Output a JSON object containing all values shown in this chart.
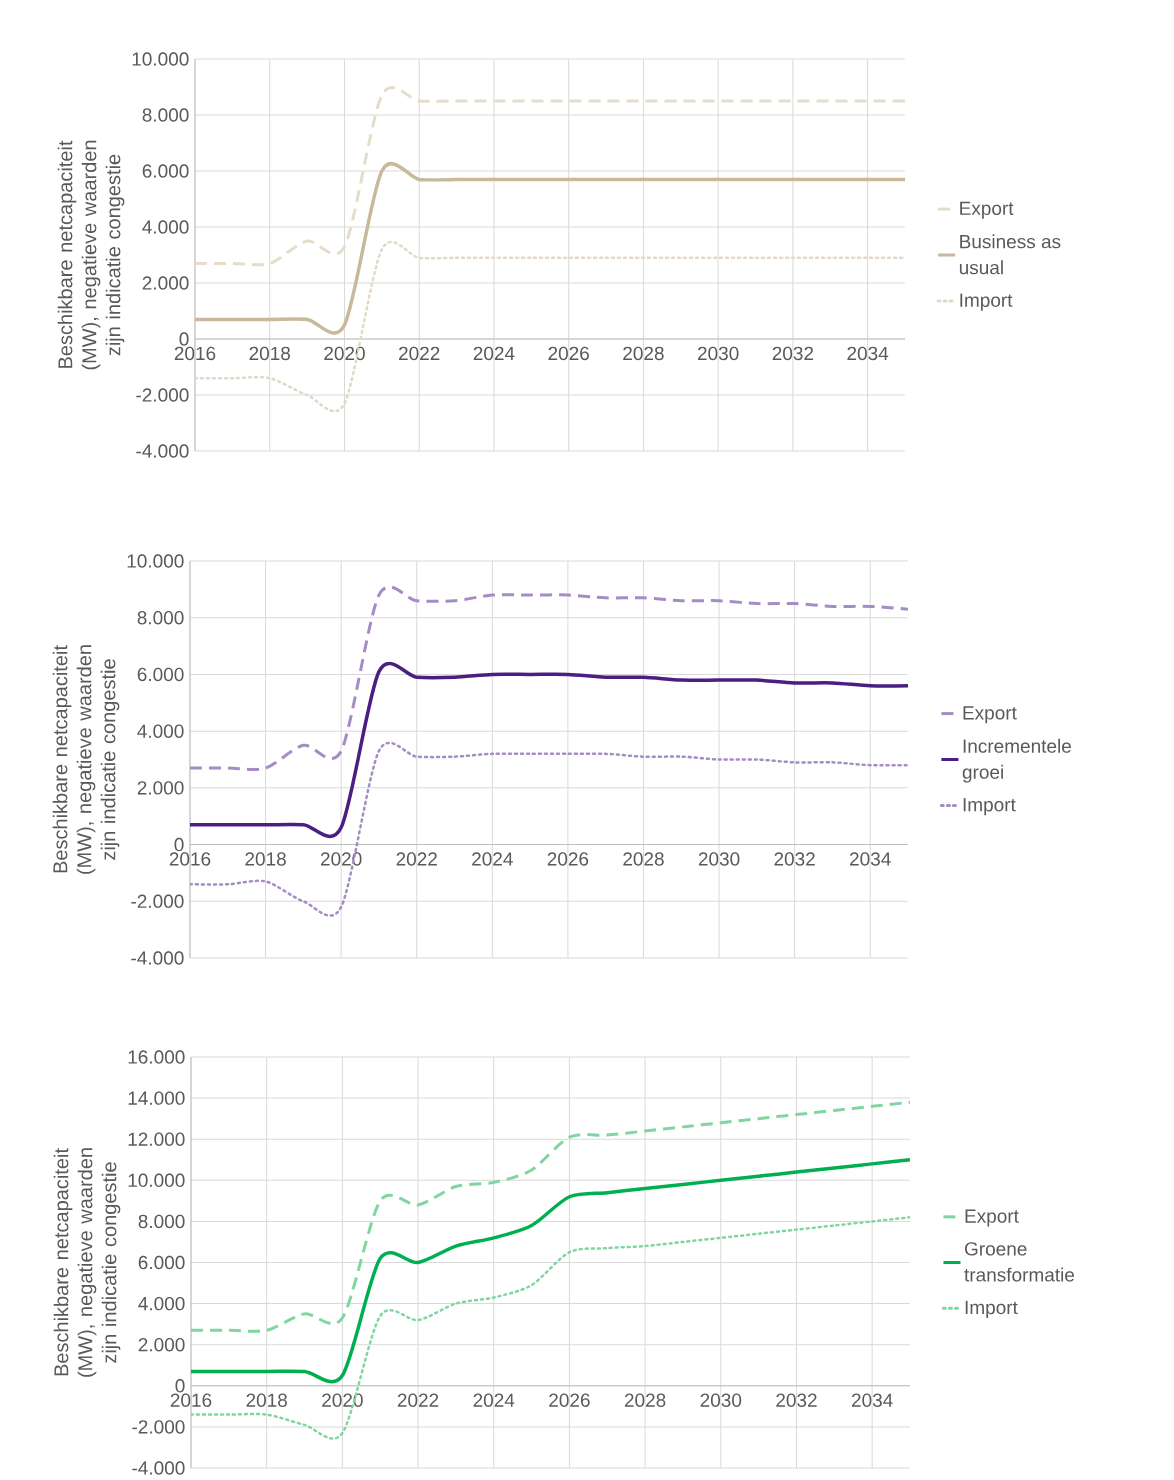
{
  "chart_data": [
    {
      "type": "line",
      "ylabel": "Beschikbare netcapaciteit (MW), negatieve waarden zijn indicatie congestie",
      "x": [
        2016,
        2017,
        2018,
        2019,
        2020,
        2021,
        2022,
        2023,
        2024,
        2025,
        2026,
        2027,
        2028,
        2029,
        2030,
        2031,
        2032,
        2033,
        2034,
        2035
      ],
      "series": [
        {
          "name": "Export",
          "color": "#e6dccb",
          "line_style": "dashed",
          "values": [
            2700,
            2700,
            2700,
            3500,
            3300,
            8700,
            8500,
            8500,
            8500,
            8500,
            8500,
            8500,
            8500,
            8500,
            8500,
            8500,
            8500,
            8500,
            8500,
            8500
          ]
        },
        {
          "name": "Business as usual",
          "color": "#c9b99a",
          "line_style": "solid",
          "values": [
            700,
            700,
            700,
            700,
            500,
            6000,
            5700,
            5700,
            5700,
            5700,
            5700,
            5700,
            5700,
            5700,
            5700,
            5700,
            5700,
            5700,
            5700,
            5700
          ]
        },
        {
          "name": "Import",
          "color": "#e3d8c8",
          "line_style": "dotted",
          "values": [
            -1400,
            -1400,
            -1400,
            -2000,
            -2300,
            3200,
            2900,
            2900,
            2900,
            2900,
            2900,
            2900,
            2900,
            2900,
            2900,
            2900,
            2900,
            2900,
            2900,
            2900
          ]
        }
      ],
      "xlim": [
        2016,
        2035
      ],
      "xticks": [
        2016,
        2018,
        2020,
        2022,
        2024,
        2026,
        2028,
        2030,
        2032,
        2034
      ],
      "ylim": [
        -4000,
        10000
      ],
      "yticks": [
        {
          "value": -4000,
          "label": "-4.000"
        },
        {
          "value": -2000,
          "label": "-2.000"
        },
        0,
        {
          "value": 2000,
          "label": "2.000"
        },
        {
          "value": 4000,
          "label": "4.000"
        },
        {
          "value": 6000,
          "label": "6.000"
        },
        {
          "value": 8000,
          "label": "8.000"
        },
        {
          "value": 10000,
          "label": "10.000"
        }
      ],
      "grid": true,
      "legend": "right",
      "marker": "none"
    },
    {
      "type": "line",
      "ylabel": "Beschikbare netcapaciteit (MW), negatieve waarden zijn indicatie congestie",
      "x": [
        2016,
        2017,
        2018,
        2019,
        2020,
        2021,
        2022,
        2023,
        2024,
        2025,
        2026,
        2027,
        2028,
        2029,
        2030,
        2031,
        2032,
        2033,
        2034,
        2035
      ],
      "series": [
        {
          "name": "Export",
          "color": "#a58cc4",
          "line_style": "dashed",
          "values": [
            2700,
            2700,
            2700,
            3500,
            3300,
            8800,
            8600,
            8600,
            8800,
            8800,
            8800,
            8700,
            8700,
            8600,
            8600,
            8500,
            8500,
            8400,
            8400,
            8300
          ]
        },
        {
          "name": "Incrementele groei",
          "color": "#4b1f82",
          "line_style": "solid",
          "values": [
            700,
            700,
            700,
            700,
            600,
            6100,
            5900,
            5900,
            6000,
            6000,
            6000,
            5900,
            5900,
            5800,
            5800,
            5800,
            5700,
            5700,
            5600,
            5600
          ]
        },
        {
          "name": "Import",
          "color": "#a58cc4",
          "line_style": "dotted",
          "values": [
            -1400,
            -1400,
            -1300,
            -2000,
            -2200,
            3300,
            3100,
            3100,
            3200,
            3200,
            3200,
            3200,
            3100,
            3100,
            3000,
            3000,
            2900,
            2900,
            2800,
            2800
          ]
        }
      ],
      "xlim": [
        2016,
        2035
      ],
      "xticks": [
        2016,
        2018,
        2020,
        2022,
        2024,
        2026,
        2028,
        2030,
        2032,
        2034
      ],
      "ylim": [
        -4000,
        10000
      ],
      "yticks": [
        {
          "value": -4000,
          "label": "-4.000"
        },
        {
          "value": -2000,
          "label": "-2.000"
        },
        0,
        {
          "value": 2000,
          "label": "2.000"
        },
        {
          "value": 4000,
          "label": "4.000"
        },
        {
          "value": 6000,
          "label": "6.000"
        },
        {
          "value": 8000,
          "label": "8.000"
        },
        {
          "value": 10000,
          "label": "10.000"
        }
      ],
      "grid": true,
      "legend": "right",
      "marker": "none"
    },
    {
      "type": "line",
      "ylabel": "Beschikbare netcapaciteit  (MW), negatieve waarden zijn indicatie congestie",
      "x": [
        2016,
        2017,
        2018,
        2019,
        2020,
        2021,
        2022,
        2023,
        2024,
        2025,
        2026,
        2027,
        2028,
        2029,
        2030,
        2031,
        2032,
        2033,
        2034,
        2035
      ],
      "series": [
        {
          "name": "Export",
          "color": "#7fd6a0",
          "line_style": "dashed",
          "values": [
            2700,
            2700,
            2700,
            3500,
            3300,
            9000,
            8800,
            9700,
            9900,
            10500,
            12100,
            12200,
            12400,
            12600,
            12800,
            13000,
            13200,
            13400,
            13600,
            13800
          ]
        },
        {
          "name": "Groene transformatie",
          "color": "#00b050",
          "line_style": "solid",
          "values": [
            700,
            700,
            700,
            700,
            500,
            6200,
            6000,
            6800,
            7200,
            7800,
            9200,
            9400,
            9600,
            9800,
            10000,
            10200,
            10400,
            10600,
            10800,
            11000
          ]
        },
        {
          "name": "Import",
          "color": "#7fd6a0",
          "line_style": "dotted",
          "values": [
            -1400,
            -1400,
            -1400,
            -1900,
            -2300,
            3400,
            3200,
            4000,
            4300,
            4900,
            6500,
            6700,
            6800,
            7000,
            7200,
            7400,
            7600,
            7800,
            8000,
            8200
          ]
        }
      ],
      "xlim": [
        2016,
        2035
      ],
      "xticks": [
        2016,
        2018,
        2020,
        2022,
        2024,
        2026,
        2028,
        2030,
        2032,
        2034
      ],
      "ylim": [
        -4000,
        16000
      ],
      "yticks": [
        {
          "value": -4000,
          "label": "-4.000"
        },
        {
          "value": -2000,
          "label": "-2.000"
        },
        0,
        {
          "value": 2000,
          "label": "2.000"
        },
        {
          "value": 4000,
          "label": "4.000"
        },
        {
          "value": 6000,
          "label": "6.000"
        },
        {
          "value": 8000,
          "label": "8.000"
        },
        {
          "value": 10000,
          "label": "10.000"
        },
        {
          "value": 12000,
          "label": "12.000"
        },
        {
          "value": 14000,
          "label": "14.000"
        },
        {
          "value": 16000,
          "label": "16.000"
        }
      ],
      "grid": true,
      "legend": "right",
      "marker": "none"
    }
  ]
}
